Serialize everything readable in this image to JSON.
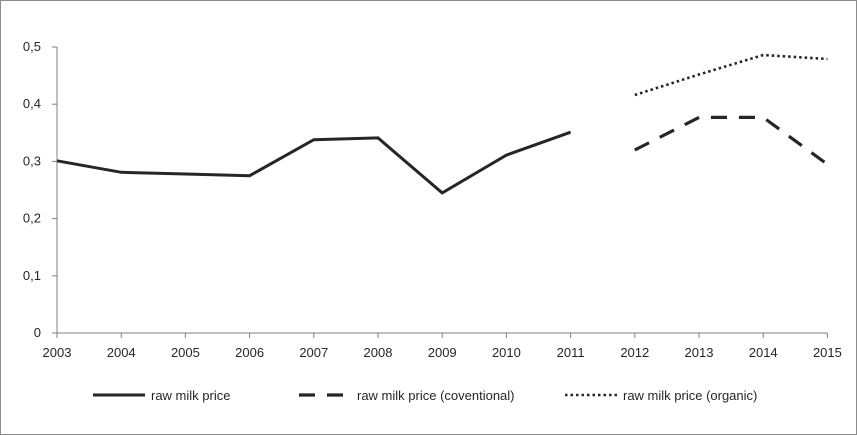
{
  "chart_data": {
    "type": "line",
    "title": "",
    "xlabel": "",
    "ylabel": "",
    "x": [
      "2003",
      "2004",
      "2005",
      "2006",
      "2007",
      "2008",
      "2009",
      "2010",
      "2011",
      "2012",
      "2013",
      "2014",
      "2015"
    ],
    "ylim": [
      0,
      0.5
    ],
    "yticks": [
      0,
      0.1,
      0.2,
      0.3,
      0.4,
      0.5
    ],
    "ytick_labels": [
      "0",
      "0,1",
      "0,2",
      "0,3",
      "0,4",
      "0,5"
    ],
    "grid": false,
    "legend_position": "bottom",
    "series": [
      {
        "name": "raw milk price",
        "style": "solid",
        "color": "#262626",
        "points": [
          {
            "x": "2003",
            "y": 0.301
          },
          {
            "x": "2004",
            "y": 0.281
          },
          {
            "x": "2005",
            "y": 0.278
          },
          {
            "x": "2006",
            "y": 0.275
          },
          {
            "x": "2007",
            "y": 0.338
          },
          {
            "x": "2008",
            "y": 0.341
          },
          {
            "x": "2009",
            "y": 0.245
          },
          {
            "x": "2010",
            "y": 0.311
          },
          {
            "x": "2011",
            "y": 0.351
          }
        ]
      },
      {
        "name": "raw milk price (coventional)",
        "style": "dashed",
        "color": "#262626",
        "points": [
          {
            "x": "2012",
            "y": 0.32
          },
          {
            "x": "2013",
            "y": 0.377
          },
          {
            "x": "2014",
            "y": 0.377
          },
          {
            "x": "2015",
            "y": 0.295
          }
        ]
      },
      {
        "name": "raw milk price (organic)",
        "style": "dotted",
        "color": "#262626",
        "points": [
          {
            "x": "2012",
            "y": 0.416
          },
          {
            "x": "2013",
            "y": 0.452
          },
          {
            "x": "2014",
            "y": 0.486
          },
          {
            "x": "2015",
            "y": 0.479
          }
        ]
      }
    ]
  }
}
